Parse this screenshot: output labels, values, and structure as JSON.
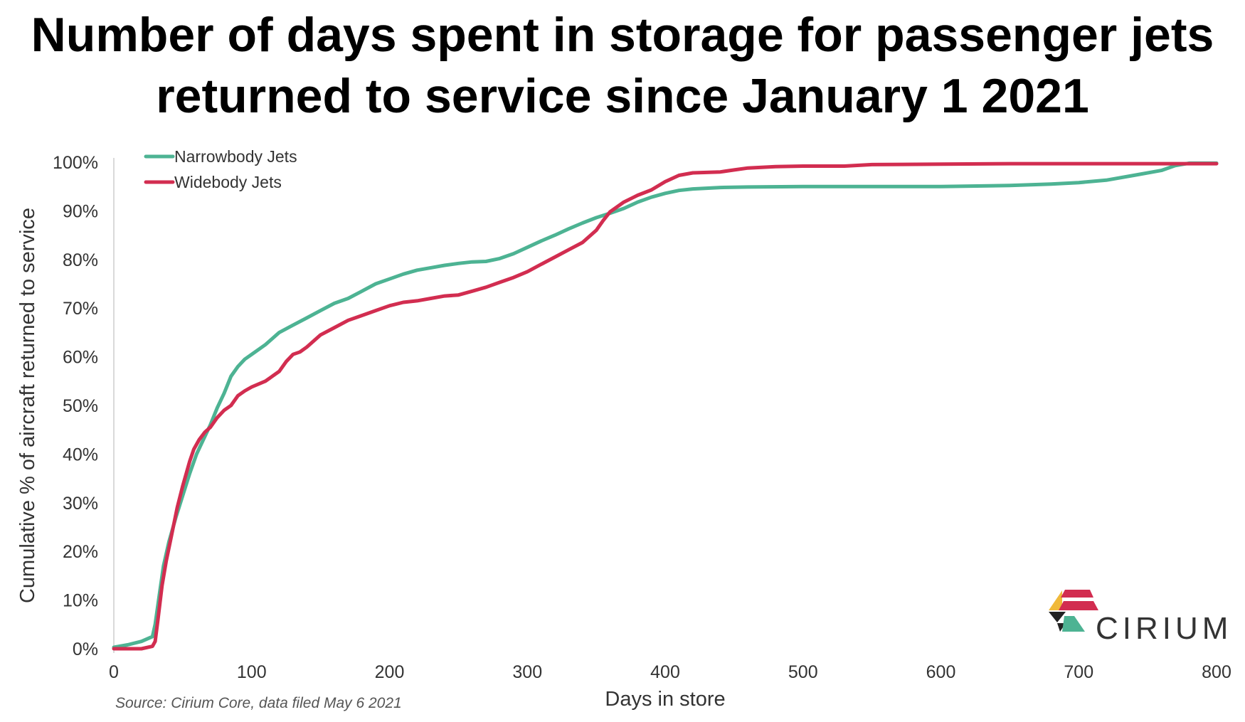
{
  "chart_data": {
    "type": "line",
    "title": "Number of days spent in storage for passenger jets returned to service since January 1 2021",
    "xlabel": "Days in store",
    "ylabel": "Cumulative % of aircraft returned to service",
    "xlim": [
      0,
      800
    ],
    "ylim": [
      0,
      100
    ],
    "x_ticks": [
      0,
      100,
      200,
      300,
      400,
      500,
      600,
      700,
      800
    ],
    "y_ticks": [
      0,
      10,
      20,
      30,
      40,
      50,
      60,
      70,
      80,
      90,
      100
    ],
    "y_tick_suffix": "%",
    "grid": false,
    "legend_position": "top-left",
    "series": [
      {
        "name": "Narrowbody Jets",
        "color": "#4db393",
        "x": [
          0,
          10,
          20,
          28,
          30,
          33,
          36,
          40,
          45,
          50,
          55,
          60,
          65,
          70,
          75,
          80,
          85,
          90,
          95,
          100,
          110,
          120,
          130,
          140,
          150,
          160,
          170,
          180,
          190,
          200,
          210,
          220,
          230,
          240,
          250,
          260,
          270,
          280,
          290,
          300,
          310,
          320,
          330,
          340,
          350,
          360,
          370,
          380,
          390,
          400,
          410,
          420,
          440,
          460,
          500,
          550,
          600,
          650,
          680,
          700,
          720,
          740,
          760,
          770,
          780,
          800
        ],
        "y": [
          0.3,
          0.8,
          1.5,
          2.5,
          5.0,
          11.0,
          17.0,
          22.0,
          27.0,
          31.5,
          36.0,
          40.0,
          43.0,
          46.0,
          49.5,
          52.5,
          56.0,
          58.0,
          59.5,
          60.5,
          62.5,
          65.0,
          66.5,
          68.0,
          69.5,
          71.0,
          72.0,
          73.5,
          75.0,
          76.0,
          77.0,
          77.8,
          78.3,
          78.8,
          79.2,
          79.5,
          79.6,
          80.2,
          81.2,
          82.5,
          83.8,
          85.0,
          86.3,
          87.5,
          88.6,
          89.5,
          90.5,
          91.8,
          92.8,
          93.6,
          94.2,
          94.5,
          94.8,
          94.9,
          95.0,
          95.0,
          95.0,
          95.2,
          95.5,
          95.8,
          96.3,
          97.3,
          98.3,
          99.3,
          99.8,
          99.8
        ]
      },
      {
        "name": "Widebody Jets",
        "color": "#d22d50",
        "x": [
          0,
          10,
          20,
          28,
          30,
          32,
          35,
          38,
          42,
          46,
          50,
          55,
          58,
          62,
          66,
          70,
          75,
          80,
          85,
          90,
          95,
          100,
          110,
          120,
          125,
          130,
          135,
          140,
          150,
          160,
          170,
          180,
          190,
          200,
          210,
          220,
          230,
          240,
          250,
          260,
          270,
          280,
          290,
          300,
          310,
          320,
          330,
          340,
          350,
          355,
          360,
          370,
          380,
          390,
          400,
          410,
          420,
          440,
          450,
          460,
          480,
          500,
          530,
          550,
          600,
          650,
          700,
          750,
          800
        ],
        "y": [
          0.0,
          0.0,
          0.0,
          0.5,
          1.5,
          6.0,
          13.0,
          18.0,
          23.5,
          29.0,
          33.5,
          38.5,
          41.0,
          43.0,
          44.5,
          45.5,
          47.5,
          49.0,
          50.0,
          52.0,
          53.0,
          53.8,
          55.0,
          57.0,
          59.0,
          60.5,
          61.0,
          62.0,
          64.5,
          66.0,
          67.5,
          68.5,
          69.5,
          70.5,
          71.2,
          71.5,
          72.0,
          72.5,
          72.7,
          73.5,
          74.3,
          75.3,
          76.3,
          77.5,
          79.0,
          80.5,
          82.0,
          83.5,
          86.0,
          88.0,
          89.8,
          91.8,
          93.2,
          94.3,
          96.0,
          97.3,
          97.8,
          98.0,
          98.4,
          98.8,
          99.1,
          99.2,
          99.2,
          99.5,
          99.6,
          99.7,
          99.7,
          99.7,
          99.7
        ]
      }
    ]
  },
  "source": "Source: Cirium Core, data filed May 6 2021",
  "brand": {
    "name": "CIRIUM",
    "colors": [
      "#f0b93a",
      "#d22d50",
      "#4db393",
      "#222222"
    ]
  }
}
